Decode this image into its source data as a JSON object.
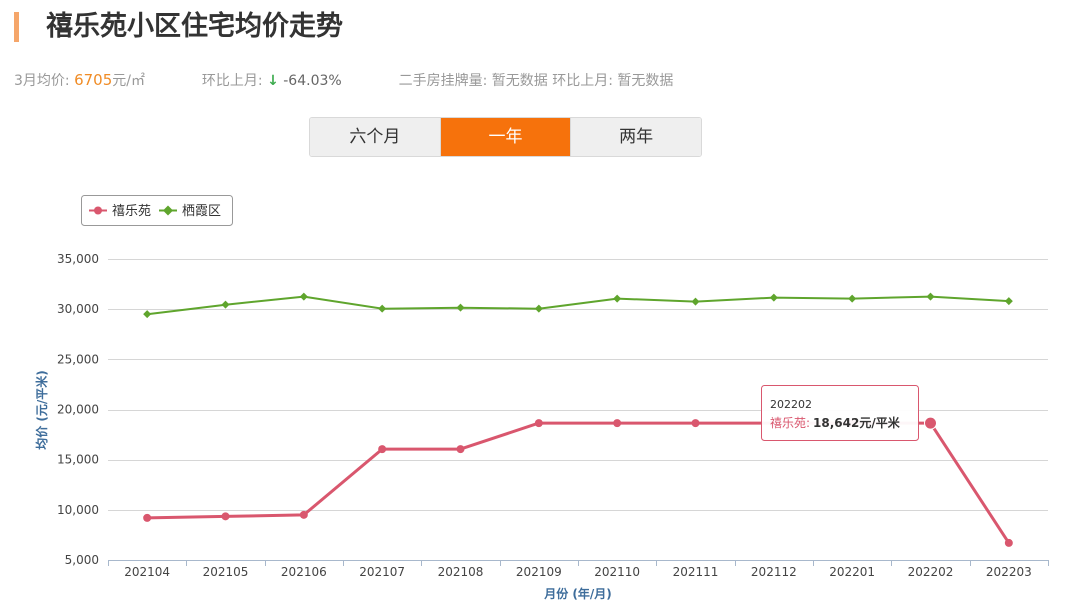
{
  "header": {
    "title": "禧乐苑小区住宅均价走势"
  },
  "stats": {
    "price_label": "3月均价:",
    "price_value": "6705",
    "price_unit": "元/㎡",
    "mom_label": "环比上月:",
    "mom_arrow": "↓",
    "mom_value": "-64.03%",
    "listing_label": "二手房挂牌量:",
    "listing_value": "暂无数据",
    "listing_mom_label": "环比上月:",
    "listing_mom_value": "暂无数据"
  },
  "tabs": [
    {
      "label": "六个月",
      "active": false
    },
    {
      "label": "一年",
      "active": true
    },
    {
      "label": "两年",
      "active": false
    }
  ],
  "colors": {
    "primary_series": "#d9576e",
    "secondary_series": "#5fa52d",
    "active_tab": "#f6720c",
    "accent_price": "#f08c26"
  },
  "tooltip": {
    "period": "202202",
    "series_label": "禧乐苑:",
    "value_text": "18,642元/平米"
  },
  "chart_data": {
    "type": "line",
    "categories": [
      "202104",
      "202105",
      "202106",
      "202107",
      "202108",
      "202109",
      "202110",
      "202111",
      "202112",
      "202201",
      "202202",
      "202203"
    ],
    "series": [
      {
        "name": "禧乐苑",
        "marker": "circle",
        "values": [
          9200,
          9350,
          9500,
          16050,
          16050,
          18642,
          18642,
          18642,
          18642,
          18642,
          18642,
          6705
        ]
      },
      {
        "name": "栖霞区",
        "marker": "diamond",
        "values": [
          29500,
          30450,
          31250,
          30050,
          30150,
          30050,
          31050,
          30750,
          31150,
          31050,
          31250,
          30800
        ]
      }
    ],
    "ylim": [
      5000,
      35000
    ],
    "yticks": [
      5000,
      10000,
      15000,
      20000,
      25000,
      30000,
      35000
    ],
    "ytick_labels": [
      "5,000",
      "10,000",
      "15,000",
      "20,000",
      "25,000",
      "30,000",
      "35,000"
    ],
    "xlabel": "月份 (年/月)",
    "ylabel": "均价 (元/平米)",
    "grid": true,
    "legend": "top-left"
  }
}
